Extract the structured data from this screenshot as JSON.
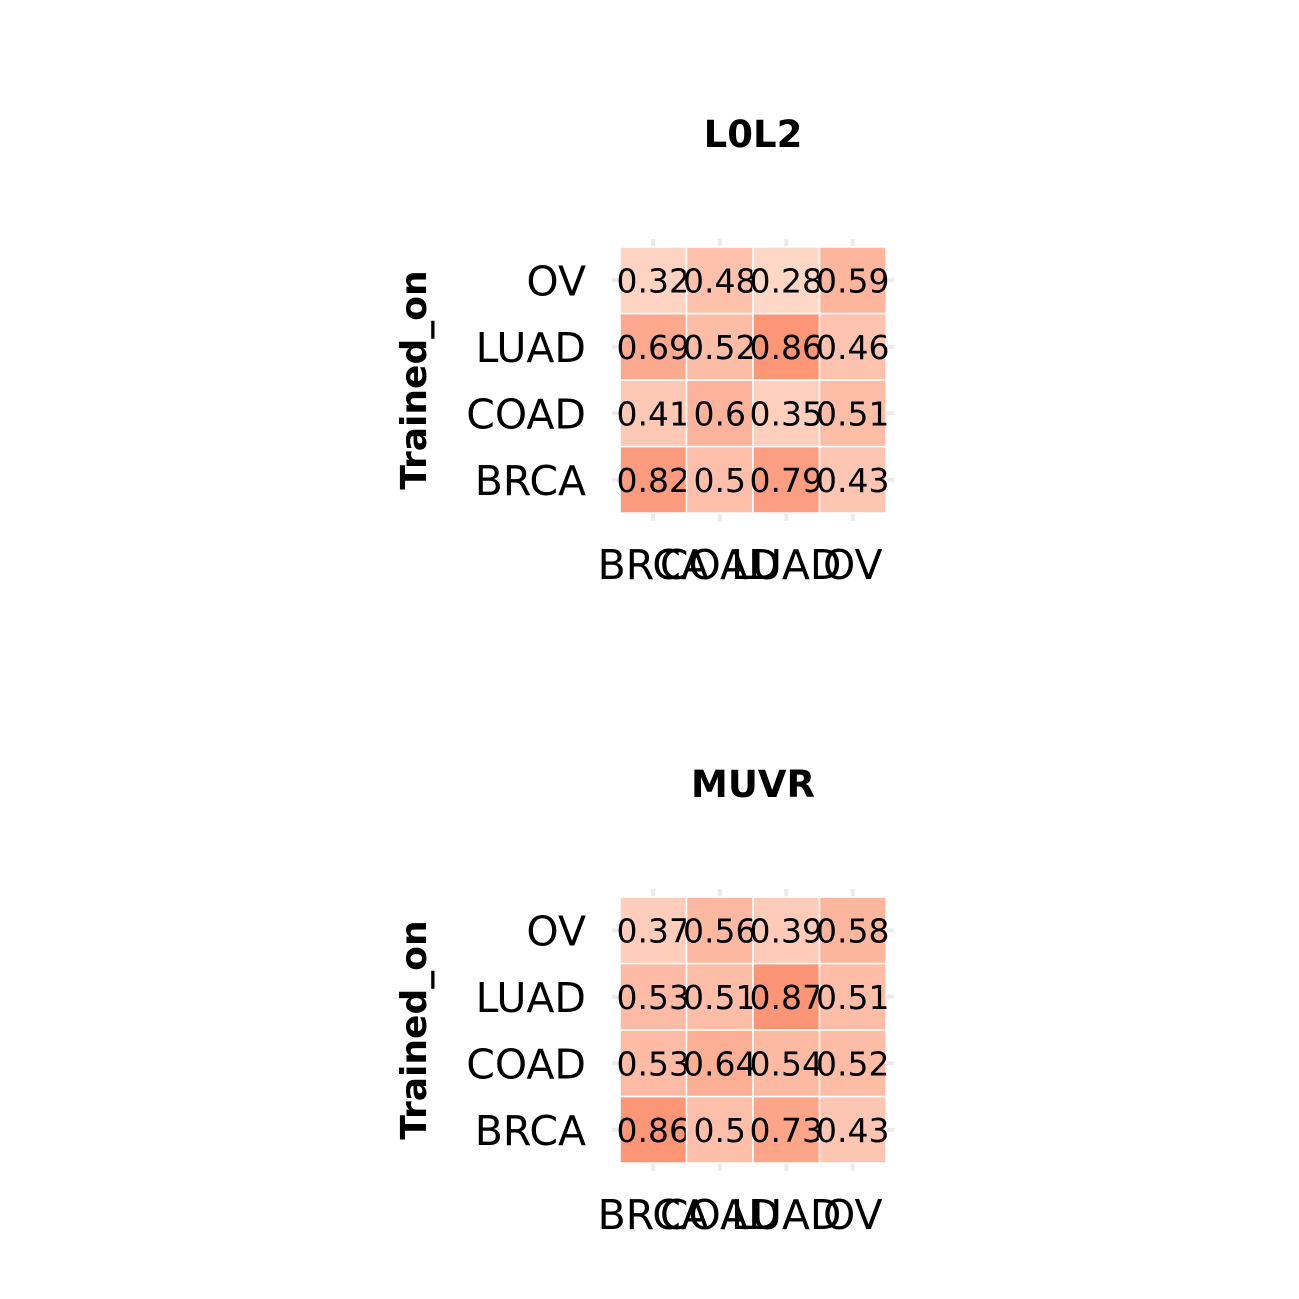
{
  "chart_data": [
    {
      "type": "heatmap",
      "title": "L0L2",
      "ylabel": "Trained_on",
      "xlabel": "",
      "x_categories": [
        "BRCA",
        "COAD",
        "LUAD",
        "OV"
      ],
      "y_categories": [
        "BRCA",
        "COAD",
        "LUAD",
        "OV"
      ],
      "values": [
        [
          0.82,
          0.5,
          0.79,
          0.43
        ],
        [
          0.41,
          0.6,
          0.35,
          0.51
        ],
        [
          0.69,
          0.52,
          0.86,
          0.46
        ],
        [
          0.32,
          0.48,
          0.28,
          0.59
        ]
      ],
      "color_low": "#fee0d2",
      "color_high": "#fc9272",
      "grid": true,
      "legend": "none"
    },
    {
      "type": "heatmap",
      "title": "MUVR",
      "ylabel": "Trained_on",
      "xlabel": "",
      "x_categories": [
        "BRCA",
        "COAD",
        "LUAD",
        "OV"
      ],
      "y_categories": [
        "BRCA",
        "COAD",
        "LUAD",
        "OV"
      ],
      "values": [
        [
          0.86,
          0.5,
          0.73,
          0.43
        ],
        [
          0.53,
          0.64,
          0.54,
          0.52
        ],
        [
          0.53,
          0.51,
          0.87,
          0.51
        ],
        [
          0.37,
          0.56,
          0.39,
          0.58
        ]
      ],
      "color_low": "#fee0d2",
      "color_high": "#fc9272",
      "grid": true,
      "legend": "none"
    }
  ]
}
